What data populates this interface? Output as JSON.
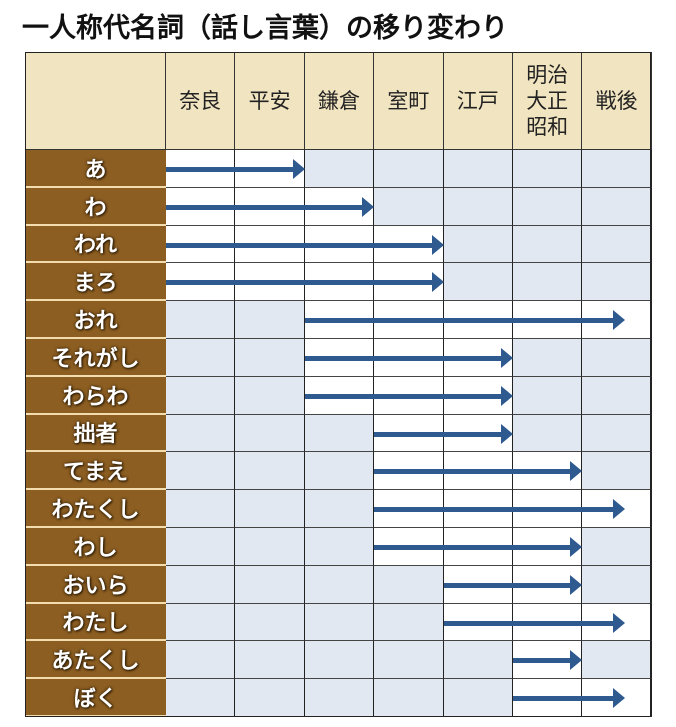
{
  "title": "一人称代名詞（話し言葉）の移り変わり",
  "colors": {
    "header_bg": "#f1e4c0",
    "label_bg": "#8c5e22",
    "cell_active": "#ffffff",
    "cell_inactive": "#e1e8f1",
    "arrow": "#2f5a8f"
  },
  "chart_data": {
    "type": "table",
    "title": "一人称代名詞（話し言葉）の移り変わり",
    "periods": [
      "奈良",
      "平安",
      "鎌倉",
      "室町",
      "江戸",
      "明治\n大正\n昭和",
      "戦後"
    ],
    "rows": [
      {
        "word": "あ",
        "start": 0,
        "end": 1,
        "start_period": "奈良",
        "end_period": "平安"
      },
      {
        "word": "わ",
        "start": 0,
        "end": 2,
        "start_period": "奈良",
        "end_period": "鎌倉"
      },
      {
        "word": "われ",
        "start": 0,
        "end": 3,
        "start_period": "奈良",
        "end_period": "室町"
      },
      {
        "word": "まろ",
        "start": 0,
        "end": 3,
        "start_period": "奈良",
        "end_period": "室町"
      },
      {
        "word": "おれ",
        "start": 2,
        "end": 6,
        "start_period": "鎌倉",
        "end_period": "戦後"
      },
      {
        "word": "それがし",
        "start": 2,
        "end": 4,
        "start_period": "鎌倉",
        "end_period": "江戸"
      },
      {
        "word": "わらわ",
        "start": 2,
        "end": 4,
        "start_period": "鎌倉",
        "end_period": "江戸"
      },
      {
        "word": "拙者",
        "start": 3,
        "end": 4,
        "start_period": "室町",
        "end_period": "江戸"
      },
      {
        "word": "てまえ",
        "start": 3,
        "end": 5,
        "start_period": "室町",
        "end_period": "明治大正昭和"
      },
      {
        "word": "わたくし",
        "start": 3,
        "end": 6,
        "start_period": "室町",
        "end_period": "戦後"
      },
      {
        "word": "わし",
        "start": 3,
        "end": 5,
        "start_period": "室町",
        "end_period": "明治大正昭和"
      },
      {
        "word": "おいら",
        "start": 4,
        "end": 5,
        "start_period": "江戸",
        "end_period": "明治大正昭和"
      },
      {
        "word": "わたし",
        "start": 4,
        "end": 6,
        "start_period": "江戸",
        "end_period": "戦後"
      },
      {
        "word": "あたくし",
        "start": 5,
        "end": 5,
        "start_period": "明治大正昭和",
        "end_period": "明治大正昭和"
      },
      {
        "word": "ぼく",
        "start": 5,
        "end": 6,
        "start_period": "明治大正昭和",
        "end_period": "戦後"
      }
    ]
  }
}
